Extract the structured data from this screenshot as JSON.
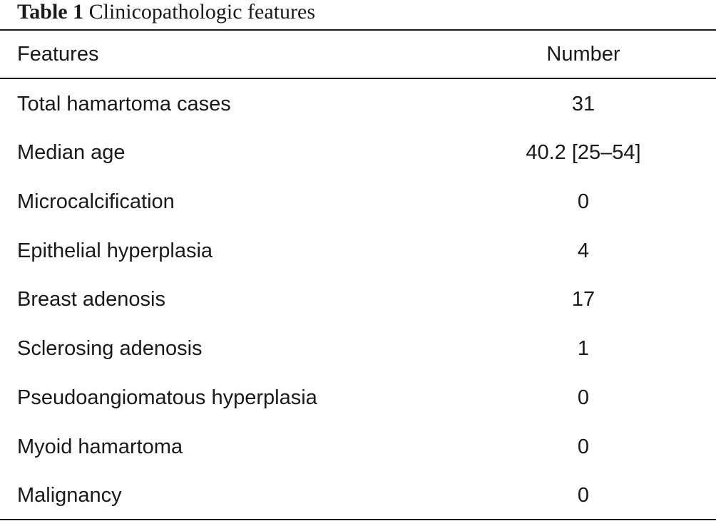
{
  "caption": {
    "label": "Table 1",
    "title": "Clinicopathologic features"
  },
  "header": {
    "feature": "Features",
    "number": "Number"
  },
  "rows": [
    {
      "feature": "Total hamartoma cases",
      "number": "31"
    },
    {
      "feature": "Median age",
      "number": "40.2 [25–54]"
    },
    {
      "feature": "Microcalcification",
      "number": "0"
    },
    {
      "feature": "Epithelial hyperplasia",
      "number": "4"
    },
    {
      "feature": "Breast adenosis",
      "number": "17"
    },
    {
      "feature": "Sclerosing adenosis",
      "number": "1"
    },
    {
      "feature": "Pseudoangiomatous hyperplasia",
      "number": "0"
    },
    {
      "feature": "Myoid hamartoma",
      "number": "0"
    },
    {
      "feature": "Malignancy",
      "number": "0"
    }
  ]
}
